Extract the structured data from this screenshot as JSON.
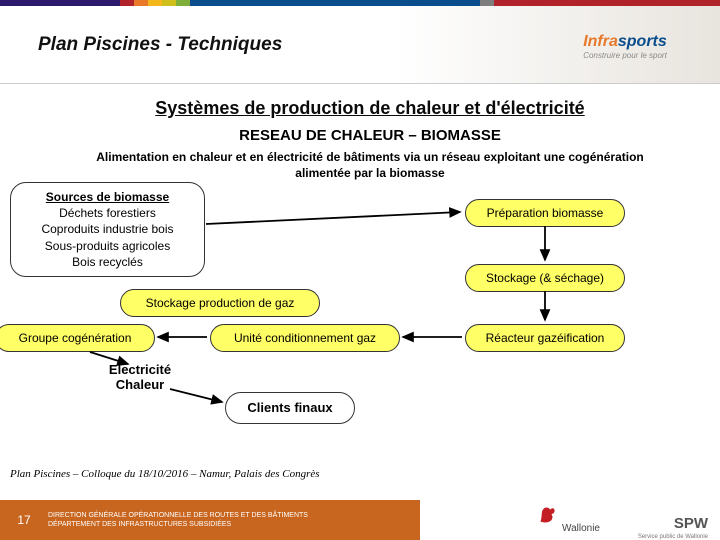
{
  "topbar_colors": [
    "#2b1a6b",
    "#b0232a",
    "#e8782a",
    "#f4b71b",
    "#cfbf1a",
    "#7fae3a",
    "#0a4d8c",
    "#7d7d7d",
    "#b0232a"
  ],
  "topbar_widths": [
    120,
    14,
    14,
    14,
    14,
    14,
    290,
    14,
    226
  ],
  "header": {
    "title": "Plan Piscines - Techniques"
  },
  "logo": {
    "part1": "Infra",
    "part2": "sports",
    "tagline": "Construire pour le sport"
  },
  "titles": {
    "main": "Systèmes de production de chaleur et d'électricité",
    "sub": "RESEAU DE CHALEUR – BIOMASSE"
  },
  "desc_line1": "Alimentation en chaleur et en électricité de bâtiments via un réseau exploitant une cogénération",
  "desc_line2": "alimentée par la biomasse",
  "box_sources_title": "Sources de biomasse",
  "box_sources_lines": [
    "Déchets forestiers",
    "Coproduits industrie bois",
    "Sous-produits agricoles",
    "Bois recyclés"
  ],
  "box_prep": "Préparation biomasse",
  "box_stock": "Stockage (& séchage)",
  "box_react": "Réacteur gazéification",
  "box_cond": "Unité conditionnement gaz",
  "box_stockgaz": "Stockage production de gaz",
  "box_cogen": "Groupe cogénération",
  "label_elec": "Electricité\nChaleur",
  "box_clients": "Clients finaux",
  "footer_note": "Plan Piscines – Colloque du 18/10/2016 – Namur, Palais des Congrès",
  "footer": {
    "page": "17",
    "dept1": "DIRECTION GÉNÉRALE OPÉRATIONNELLE DES ROUTES ET DES BÂTIMENTS",
    "dept2": "DÉPARTEMENT DES INFRASTRUCTURES SUBSIDIÉES",
    "region": "Wallonie",
    "spw": "SPW",
    "spw_sub": "Service public de Wallonie"
  },
  "styling": {
    "box_bg_yellow": "#ffff66",
    "box_border": "#333333",
    "arrow_color": "#000000"
  }
}
